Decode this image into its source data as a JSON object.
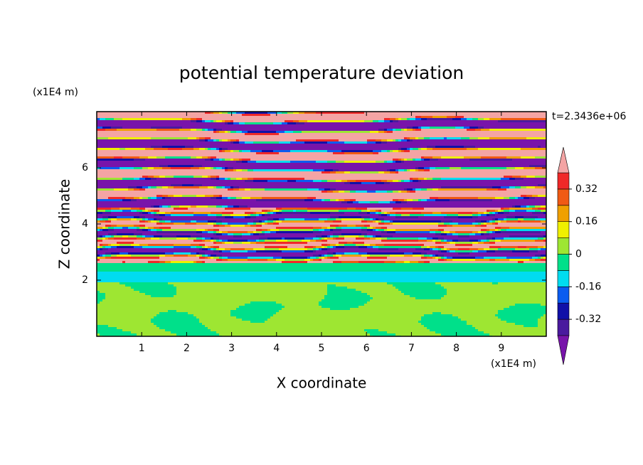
{
  "chart_data": {
    "type": "contour",
    "title": "potential temperature deviation",
    "x_label": "X coordinate",
    "y_label": "Z coordinate",
    "x_unit": "(x1E4 m)",
    "y_unit": "(x1E4 m)",
    "time_label": "t=2.3436e+06",
    "xlim": [
      0,
      10
    ],
    "xticks": [
      1,
      2,
      3,
      4,
      5,
      6,
      7,
      8,
      9
    ],
    "ylim": [
      0,
      8
    ],
    "yticks": [
      2,
      4,
      6
    ],
    "colorbar": {
      "levels": [
        -0.4,
        -0.32,
        -0.24,
        -0.16,
        -0.08,
        0,
        0.08,
        0.16,
        0.24,
        0.32,
        0.4
      ],
      "ticks": [
        -0.32,
        -0.16,
        0,
        0.16,
        0.32
      ],
      "colors": [
        "#7814aa",
        "#4a1a9e",
        "#1010a8",
        "#0a5cf0",
        "#00dcf0",
        "#00e08a",
        "#9ee632",
        "#f0f000",
        "#f0a000",
        "#f05a14",
        "#f02828",
        "#f4a4a4"
      ]
    }
  }
}
